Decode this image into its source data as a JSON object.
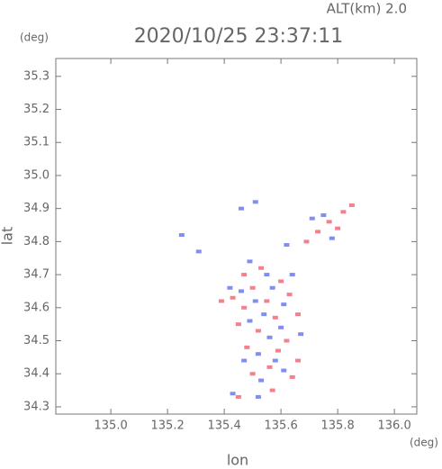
{
  "chart_data": {
    "type": "scatter",
    "title": "2020/10/25 23:37:11",
    "subtitle": "ALT(km) 2.0",
    "xlabel": "lon",
    "ylabel": "lat",
    "xunit": "(deg)",
    "yunit": "(deg)",
    "xlim": [
      134.806,
      136.079
    ],
    "ylim": [
      34.278,
      35.354
    ],
    "xticks": [
      {
        "value": 135.0,
        "label": "135.0"
      },
      135.2,
      135.4,
      135.6,
      135.8,
      {
        "value": 136.0,
        "label": "136.0"
      }
    ],
    "yticks": [
      34.3,
      34.4,
      34.5,
      34.6,
      34.7,
      34.8,
      34.9,
      {
        "value": 35.0,
        "label": "35.0"
      },
      35.1,
      35.2,
      35.3
    ],
    "grid": false,
    "series": [
      {
        "color": "#f06070",
        "x": [
          135.43,
          135.47,
          135.5,
          135.55,
          135.6,
          135.63,
          135.58,
          135.52,
          135.62,
          135.66,
          135.48,
          135.56,
          135.64,
          135.5,
          135.47,
          135.53,
          135.77,
          135.82,
          135.85,
          135.8,
          135.73,
          135.69,
          135.45,
          135.57,
          135.39,
          135.66,
          135.59,
          135.45
        ],
        "values": [
          34.63,
          34.6,
          34.66,
          34.62,
          34.68,
          34.64,
          34.57,
          34.53,
          34.5,
          34.44,
          34.48,
          34.42,
          34.39,
          34.4,
          34.7,
          34.72,
          34.86,
          34.89,
          34.91,
          34.84,
          34.83,
          34.8,
          34.33,
          34.35,
          34.62,
          34.58,
          34.47,
          34.55
        ]
      },
      {
        "color": "#6070f0",
        "x": [
          135.46,
          135.51,
          135.57,
          135.61,
          135.54,
          135.49,
          135.56,
          135.6,
          135.52,
          135.58,
          135.47,
          135.53,
          135.61,
          135.49,
          135.55,
          135.51,
          135.46,
          135.75,
          135.78,
          135.71,
          135.62,
          135.31,
          135.25,
          135.52,
          135.43,
          135.42,
          135.64,
          135.67
        ],
        "values": [
          34.65,
          34.62,
          34.66,
          34.61,
          34.58,
          34.56,
          34.51,
          34.54,
          34.46,
          34.44,
          34.44,
          34.38,
          34.41,
          34.74,
          34.7,
          34.92,
          34.9,
          34.88,
          34.81,
          34.87,
          34.79,
          34.77,
          34.82,
          34.33,
          34.34,
          34.66,
          34.7,
          34.52
        ]
      }
    ]
  }
}
